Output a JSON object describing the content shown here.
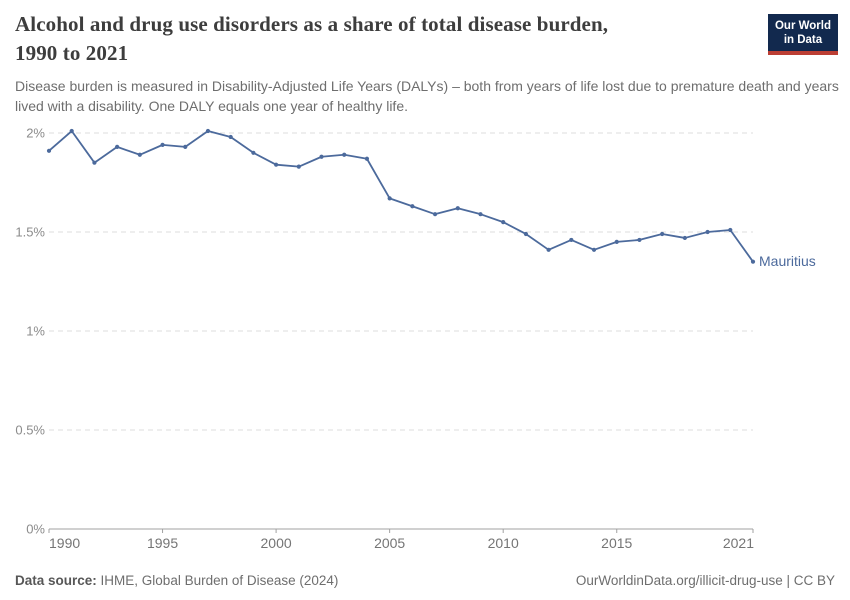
{
  "header": {
    "title_line1": "Alcohol and drug use disorders as a share of total disease burden,",
    "title_line2": "1990 to 2021",
    "subtitle": "Disease burden is measured in Disability-Adjusted Life Years (DALYs) – both from years of life lost due to premature death and years lived with a disability. One DALY equals one year of healthy life.",
    "logo": {
      "line1": "Our World",
      "line2": "in Data",
      "bg_color": "#12294e",
      "accent_color": "#bc3e34"
    }
  },
  "chart_data": {
    "type": "line",
    "title": "Alcohol and drug use disorders as a share of total disease burden, 1990 to 2021",
    "xlabel": "",
    "ylabel": "",
    "unit": "%",
    "ylim": [
      0,
      2.05
    ],
    "x_range": [
      1990,
      2021
    ],
    "grid": "dashed-horizontal",
    "legend": "end-of-line-label",
    "x": [
      1990,
      1991,
      1992,
      1993,
      1994,
      1995,
      1996,
      1997,
      1998,
      1999,
      2000,
      2001,
      2002,
      2003,
      2004,
      2005,
      2006,
      2007,
      2008,
      2009,
      2010,
      2011,
      2012,
      2013,
      2014,
      2015,
      2016,
      2017,
      2018,
      2019,
      2020,
      2021
    ],
    "series": [
      {
        "name": "Mauritius",
        "color": "#4c6a9c",
        "values": [
          1.91,
          2.01,
          1.85,
          1.93,
          1.89,
          1.94,
          1.93,
          2.01,
          1.98,
          1.9,
          1.84,
          1.83,
          1.88,
          1.89,
          1.87,
          1.67,
          1.63,
          1.59,
          1.62,
          1.59,
          1.55,
          1.49,
          1.41,
          1.46,
          1.41,
          1.45,
          1.46,
          1.49,
          1.47,
          1.5,
          1.51,
          1.35
        ]
      }
    ],
    "y_ticks": [
      {
        "value": 2,
        "label": "2%"
      },
      {
        "value": 1.5,
        "label": "1.5%"
      },
      {
        "value": 1,
        "label": "1%"
      },
      {
        "value": 0.5,
        "label": "0.5%"
      },
      {
        "value": 0,
        "label": "0%"
      }
    ],
    "x_ticks": [
      {
        "value": 1990,
        "label": "1990"
      },
      {
        "value": 1995,
        "label": "1995"
      },
      {
        "value": 2000,
        "label": "2000"
      },
      {
        "value": 2005,
        "label": "2005"
      },
      {
        "value": 2010,
        "label": "2010"
      },
      {
        "value": 2015,
        "label": "2015"
      },
      {
        "value": 2021,
        "label": "2021"
      }
    ]
  },
  "footer": {
    "source_label": "Data source:",
    "source_value": "IHME, Global Burden of Disease (2024)",
    "link": "OurWorldinData.org/illicit-drug-use | CC BY"
  }
}
